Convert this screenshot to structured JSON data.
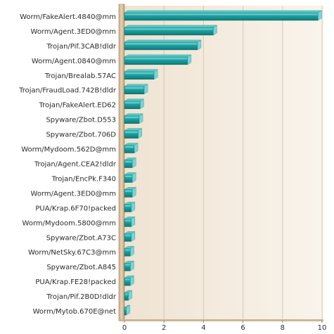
{
  "chart_data": {
    "type": "bar",
    "orientation": "horizontal",
    "categories": [
      "Worm/FakeAlert.4840@mm",
      "Worm/Agent.3ED0@mm",
      "Trojan/Pif.3CAB!dldr",
      "Worm/Agent.0840@mm",
      "Trojan/Brealab.57AC",
      "Trojan/FraudLoad.742B!dldr",
      "Trojan/FakeAlert.ED62",
      "Spyware/Zbot.D553",
      "Spyware/Zbot.706D",
      "Worm/Mydoom.562D@mm",
      "Trojan/Agent.CEA2!dldr",
      "Trojan/EncPk.F340",
      "Worm/Agent.3ED0@mm",
      "PUA/Krap.6F70!packed",
      "Worm/Mydoom.5800@mm",
      "Spyware/Zbot.A73C",
      "Worm/NetSky.67C3@mm",
      "Spyware/Zbot.A845",
      "PUA/Krap.FE28!packed",
      "Trojan/Pif.2B0D!dldr",
      "Worm/Mytob.670E@net"
    ],
    "values": [
      9.8,
      4.5,
      3.7,
      3.2,
      1.5,
      1.0,
      0.8,
      0.75,
      0.7,
      0.5,
      0.4,
      0.4,
      0.4,
      0.35,
      0.35,
      0.35,
      0.3,
      0.3,
      0.3,
      0.2,
      0.1
    ],
    "xlim": [
      0,
      10
    ],
    "xticks": [
      "0",
      "2",
      "4",
      "6",
      "8",
      "10"
    ],
    "grid": true,
    "title": "",
    "xlabel": "",
    "ylabel": "",
    "colors": {
      "bar_face": "#1a9a9a",
      "bar_top": "#5cc8c8",
      "bar_side": "#0c6464",
      "plot_bg": "#f2e9dc",
      "plot_bg_light": "#f8f2ea",
      "wall": "#d9c4a6",
      "gridline": "#d6c9b6"
    }
  }
}
